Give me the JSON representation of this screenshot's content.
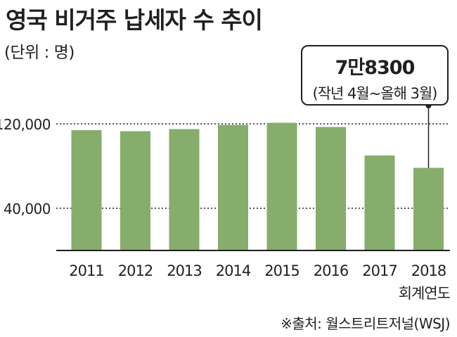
{
  "title": "영국 비거주 납세자 수 추이",
  "unit_label": "(단위 : 명)",
  "source": "※출처: 월스트리트저널(WSJ)",
  "callout": {
    "value": "7만8300",
    "note": "(작년 4월~올해 3월)"
  },
  "colors": {
    "bar": "#86ad6b",
    "axis": "#231f20",
    "text": "#231f20"
  },
  "chart_data": {
    "type": "bar",
    "title": "영국 비거주 납세자 수 추이",
    "xlabel": "회계연도",
    "ylabel": "",
    "categories": [
      "2011",
      "2012",
      "2013",
      "2014",
      "2015",
      "2016",
      "2017",
      "2018"
    ],
    "values": [
      114000,
      113000,
      115000,
      119000,
      121000,
      117000,
      90000,
      78300
    ],
    "y_ticks": [
      {
        "value": 40000,
        "label": "40,000"
      },
      {
        "value": 120000,
        "label": "120,000"
      }
    ],
    "ylim": [
      0,
      130000
    ],
    "grid": "dotted reference lines at labeled ticks",
    "legend": "none"
  }
}
